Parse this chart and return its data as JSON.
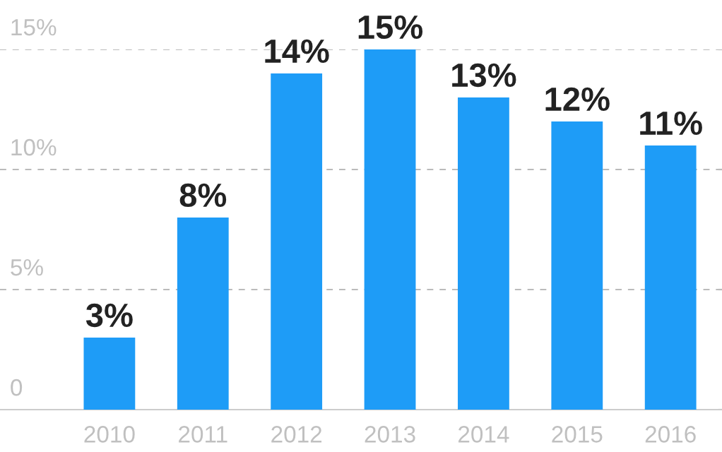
{
  "chart_data": {
    "type": "bar",
    "categories": [
      "2010",
      "2011",
      "2012",
      "2013",
      "2014",
      "2015",
      "2016"
    ],
    "values": [
      3,
      8,
      14,
      15,
      13,
      12,
      11
    ],
    "value_labels": [
      "3%",
      "8%",
      "14%",
      "15%",
      "13%",
      "12%",
      "11%"
    ],
    "color": "#1e9cf7",
    "ylim": [
      0,
      15
    ],
    "yticks": [
      0,
      {
        "value": 5,
        "label": "5%"
      },
      {
        "value": 10,
        "label": "10%"
      },
      {
        "value": 15,
        "label": "15%"
      }
    ],
    "grid": "y",
    "line_style": "dashed",
    "legend": false
  }
}
